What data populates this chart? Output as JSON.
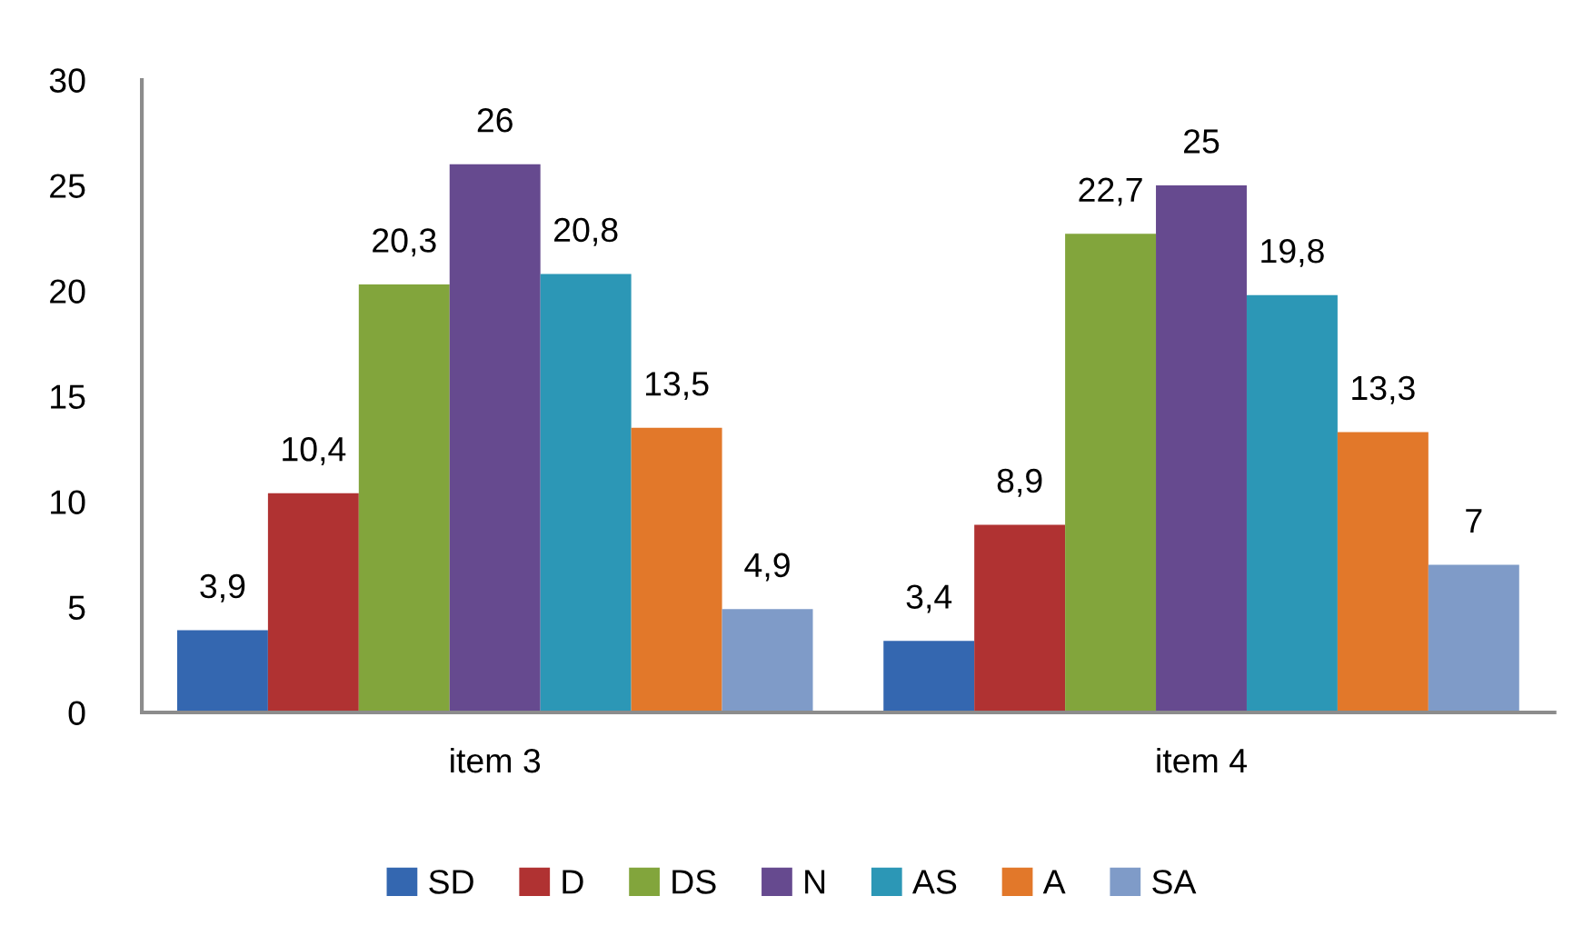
{
  "chart_data": {
    "type": "bar",
    "categories": [
      "item 3",
      "item 4"
    ],
    "series": [
      {
        "name": "SD",
        "color": "#3467b0",
        "values": [
          3.9,
          3.4
        ],
        "value_labels": [
          "3,9",
          "3,4"
        ]
      },
      {
        "name": "D",
        "color": "#b03232",
        "values": [
          10.4,
          8.9
        ],
        "value_labels": [
          "10,4",
          "8,9"
        ]
      },
      {
        "name": "DS",
        "color": "#82a53c",
        "values": [
          20.3,
          22.7
        ],
        "value_labels": [
          "20,3",
          "22,7"
        ]
      },
      {
        "name": "N",
        "color": "#664a8f",
        "values": [
          26,
          25
        ],
        "value_labels": [
          "26",
          "25"
        ]
      },
      {
        "name": "AS",
        "color": "#2c97b6",
        "values": [
          20.8,
          19.8
        ],
        "value_labels": [
          "20,8",
          "19,8"
        ]
      },
      {
        "name": "A",
        "color": "#e2782a",
        "values": [
          13.5,
          13.3
        ],
        "value_labels": [
          "13,5",
          "13,3"
        ]
      },
      {
        "name": "SA",
        "color": "#7f9bc8",
        "values": [
          4.9,
          7
        ],
        "value_labels": [
          "4,9",
          "7"
        ]
      }
    ],
    "ylim": [
      0,
      30
    ],
    "yticks": [
      0,
      5,
      10,
      15,
      20,
      25,
      30
    ],
    "grid": false,
    "legend": "bottom"
  }
}
